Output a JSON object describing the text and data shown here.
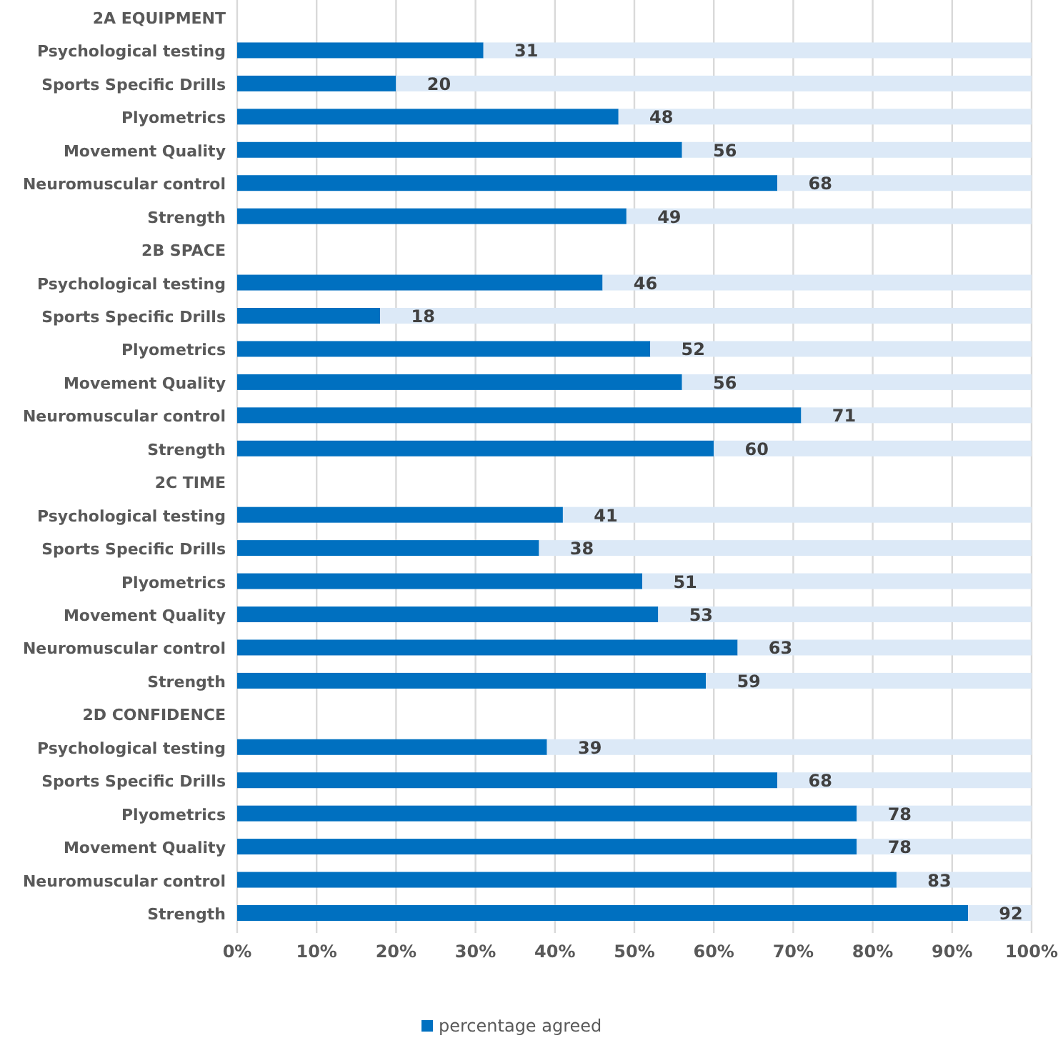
{
  "chart_data": {
    "type": "bar",
    "orientation": "horizontal",
    "stacked": true,
    "categories": [
      "2A EQUIPMENT",
      "Psychological testing",
      "Sports Specific Drills",
      "Plyometrics",
      "Movement Quality",
      "Neuromuscular control",
      "Strength",
      "2B SPACE",
      "Psychological testing",
      "Sports Specific Drills",
      "Plyometrics",
      "Movement Quality",
      "Neuromuscular control",
      "Strength",
      "2C TIME",
      "Psychological testing",
      "Sports Specific Drills",
      "Plyometrics",
      "Movement Quality",
      "Neuromuscular control",
      "Strength",
      "2D CONFIDENCE",
      "Psychological testing",
      "Sports Specific Drills",
      "Plyometrics",
      "Movement Quality",
      "Neuromuscular control",
      "Strength"
    ],
    "series": [
      {
        "name": "percentage agreed",
        "color": "#0070c0",
        "values": [
          null,
          31,
          20,
          48,
          56,
          68,
          49,
          null,
          46,
          18,
          52,
          56,
          71,
          60,
          null,
          41,
          38,
          51,
          53,
          63,
          59,
          null,
          39,
          68,
          78,
          78,
          83,
          92
        ],
        "value_labels": [
          null,
          "31",
          "20",
          "48",
          "56",
          "68",
          "49",
          null,
          "46",
          "18",
          "52",
          "56",
          "71",
          "60",
          null,
          "41",
          "38",
          "51",
          "53",
          "63",
          "59",
          null,
          "39",
          "68",
          "78",
          "78",
          "83",
          "92"
        ]
      },
      {
        "color": "#dce9f7",
        "values": [
          null,
          69,
          80,
          52,
          44,
          32,
          51,
          null,
          54,
          82,
          48,
          44,
          29,
          40,
          null,
          59,
          62,
          49,
          47,
          37,
          41,
          null,
          61,
          32,
          22,
          22,
          17,
          8
        ]
      }
    ],
    "xlim": [
      0,
      100
    ],
    "xticks": [
      {
        "value": 0,
        "label": "0%"
      },
      {
        "value": 10,
        "label": "10%"
      },
      {
        "value": 20,
        "label": "20%"
      },
      {
        "value": 30,
        "label": "30%"
      },
      {
        "value": 40,
        "label": "40%"
      },
      {
        "value": 50,
        "label": "50%"
      },
      {
        "value": 60,
        "label": "60%"
      },
      {
        "value": 70,
        "label": "70%"
      },
      {
        "value": 80,
        "label": "80%"
      },
      {
        "value": 90,
        "label": "90%"
      },
      {
        "value": 100,
        "label": "100%"
      }
    ],
    "grid": "x",
    "legend": "bottom"
  }
}
